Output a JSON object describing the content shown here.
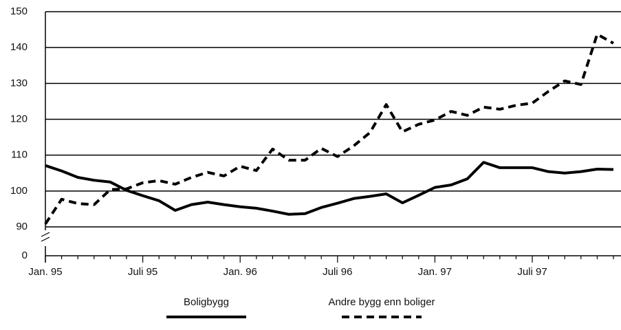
{
  "chart_data": {
    "type": "line",
    "categories": [
      "Jan. 95",
      null,
      null,
      null,
      null,
      null,
      "Juli 95",
      null,
      null,
      null,
      null,
      null,
      "Jan. 96",
      null,
      null,
      null,
      null,
      null,
      "Juli 96",
      null,
      null,
      null,
      null,
      null,
      "Jan. 97",
      null,
      null,
      null,
      null,
      null,
      "Juli 97",
      null,
      null,
      null,
      null,
      null
    ],
    "series": [
      {
        "name": "Boligbygg",
        "color": "#000000",
        "dash": false,
        "values": [
          107.1,
          105.6,
          103.8,
          103,
          102.5,
          100.2,
          98.7,
          97.3,
          94.6,
          96.2,
          96.9,
          96.2,
          95.6,
          95.2,
          94.4,
          93.5,
          93.7,
          95.4,
          96.6,
          97.9,
          98.5,
          99.2,
          96.7,
          98.8,
          101,
          101.7,
          103.4,
          108,
          106.5,
          106.5,
          106.5,
          105.4,
          105,
          105.4,
          106.1,
          106
        ]
      },
      {
        "name": "Andre bygg enn boliger",
        "color": "#000000",
        "dash": true,
        "values": [
          90.8,
          97.7,
          96.5,
          96.2,
          100.4,
          100.6,
          102.3,
          102.9,
          101.9,
          103.8,
          105.2,
          104.2,
          106.9,
          105.7,
          111.7,
          108.6,
          108.6,
          111.9,
          109.6,
          112.6,
          116.3,
          124.1,
          116.5,
          118.6,
          119.8,
          122.2,
          121.1,
          123.4,
          122.8,
          123.9,
          124.5,
          127.8,
          130.7,
          129.7,
          143.7,
          141.2
        ]
      }
    ],
    "ylim": [
      0,
      150
    ],
    "y_break": [
      0,
      90
    ],
    "yticks": [
      0,
      90,
      100,
      110,
      120,
      130,
      140,
      150
    ],
    "grid": true
  }
}
